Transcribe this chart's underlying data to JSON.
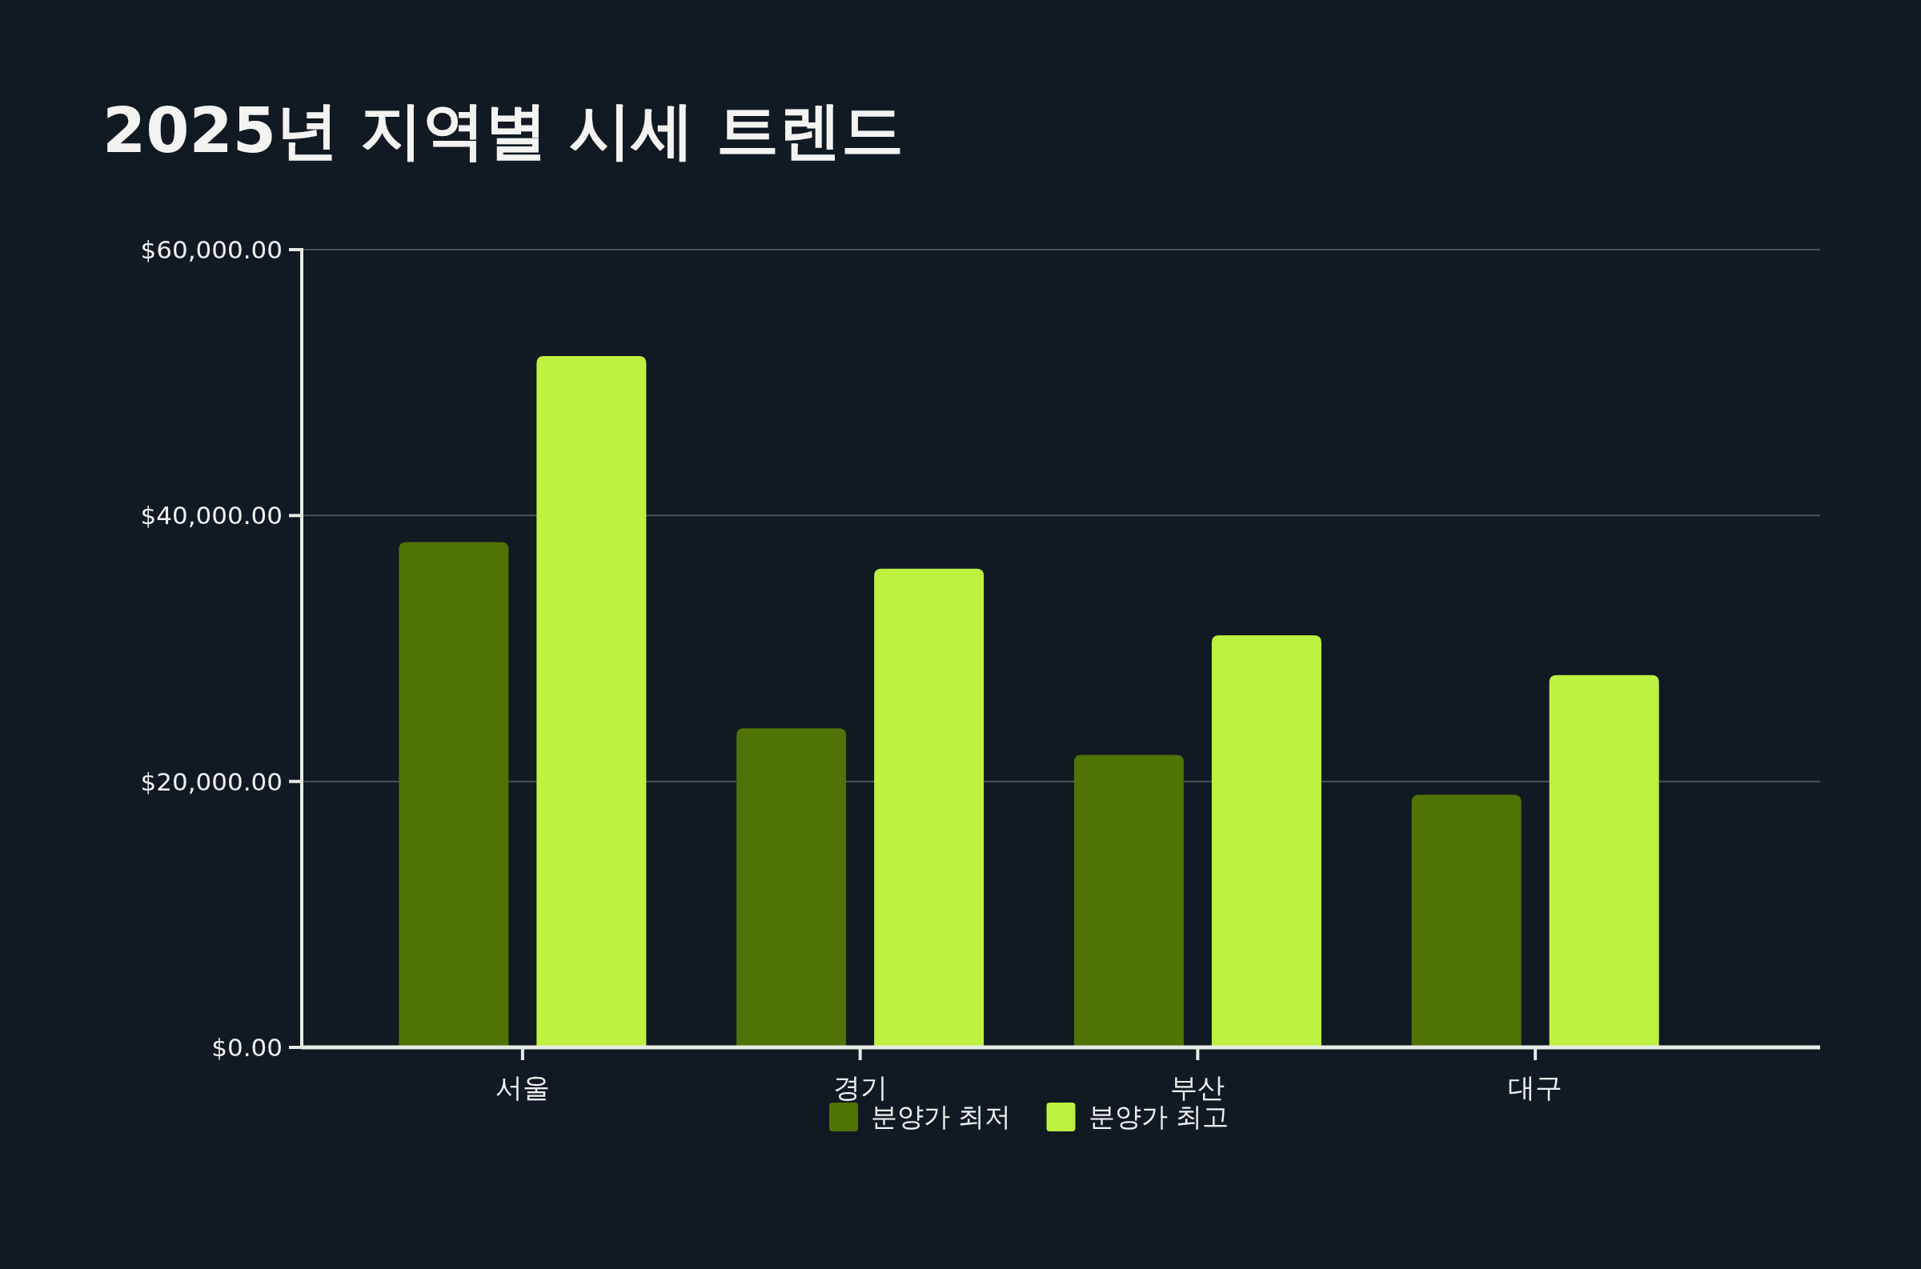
{
  "chart_data": {
    "type": "bar",
    "title": "2025년 지역별 시세 트렌드",
    "categories": [
      "서울",
      "경기",
      "부산",
      "대구"
    ],
    "series": [
      {
        "name": "분양가 최저",
        "color": "#4f7305",
        "values": [
          38000,
          24000,
          22000,
          19000
        ]
      },
      {
        "name": "분양가 최고",
        "color": "#bef240",
        "values": [
          52000,
          36000,
          31000,
          28000
        ]
      }
    ],
    "ylim": [
      0,
      60000
    ],
    "yticks": [
      {
        "value": 0,
        "label": "$0.00"
      },
      {
        "value": 20000,
        "label": "$20,000.00"
      },
      {
        "value": 40000,
        "label": "$40,000.00"
      },
      {
        "value": 60000,
        "label": "$60,000.00"
      }
    ],
    "grid": "y",
    "legend": "bottom"
  }
}
